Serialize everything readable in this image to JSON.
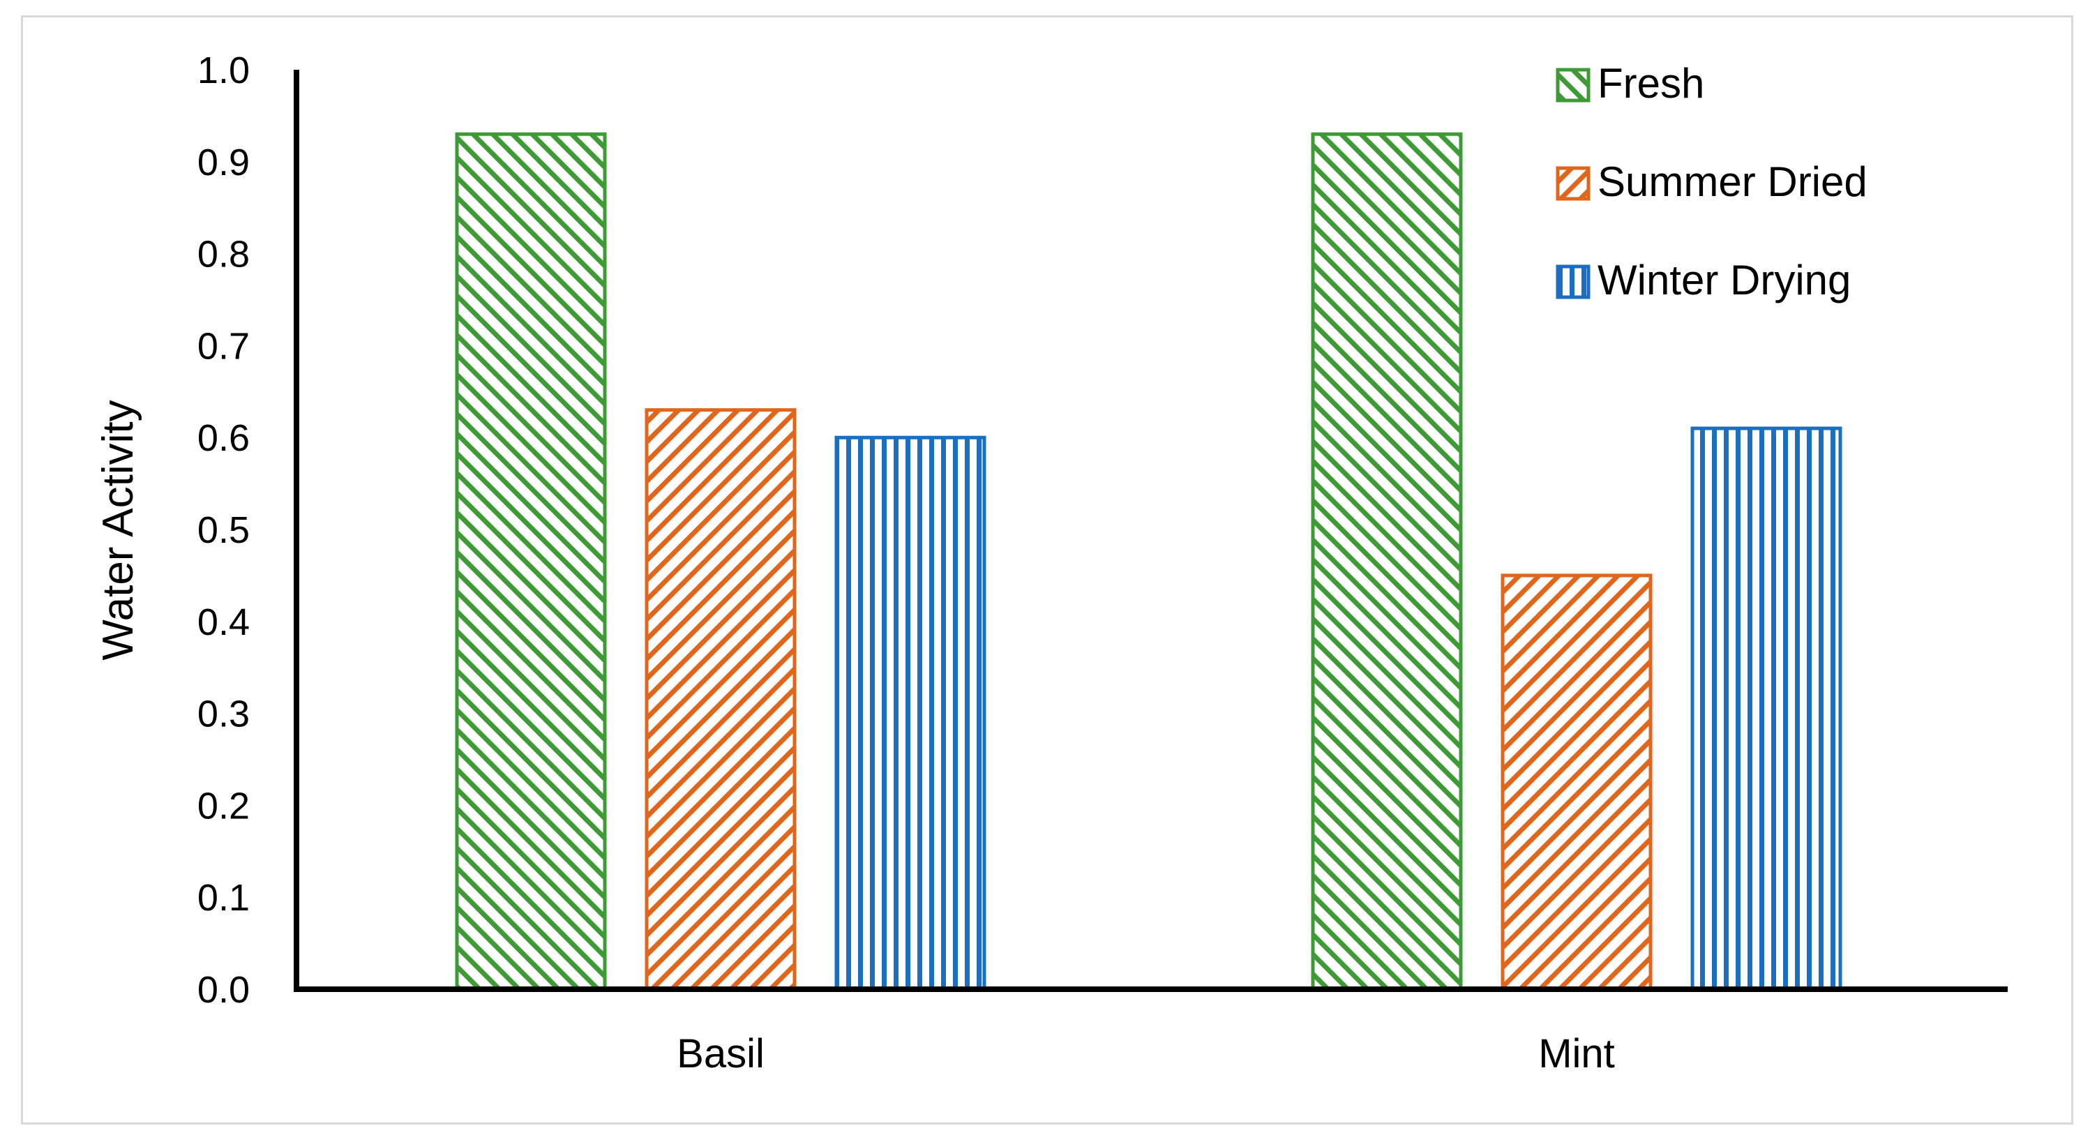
{
  "chart_data": {
    "type": "bar",
    "title": "",
    "xlabel": "",
    "ylabel": "Water Activity",
    "ylim": [
      0,
      1.0
    ],
    "yticks": [
      "0.0",
      "0.1",
      "0.2",
      "0.3",
      "0.4",
      "0.5",
      "0.6",
      "0.7",
      "0.8",
      "0.9",
      "1.0"
    ],
    "categories": [
      "Basil",
      "Mint"
    ],
    "series": [
      {
        "name": "Fresh",
        "values": [
          0.93,
          0.93
        ],
        "color": "#3d9a35",
        "pattern": "diagonal-down"
      },
      {
        "name": "Summer Dried",
        "values": [
          0.63,
          0.45
        ],
        "color": "#e0661c",
        "pattern": "diagonal-up"
      },
      {
        "name": "Winter Drying",
        "values": [
          0.6,
          0.61
        ],
        "color": "#1c6fc0",
        "pattern": "vertical"
      }
    ],
    "grid": false,
    "legend_position": "top-right"
  }
}
